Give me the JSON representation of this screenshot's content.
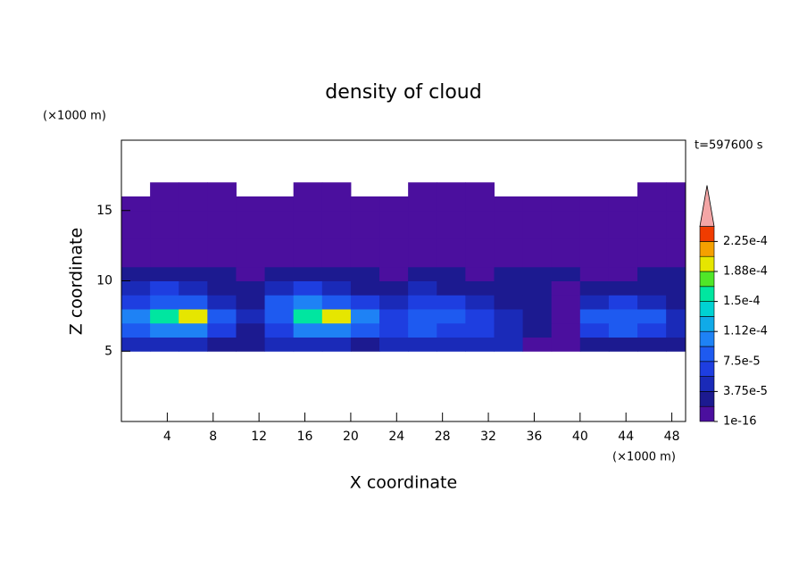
{
  "chart_data": {
    "type": "contour",
    "title": "density of cloud",
    "xlabel": "X coordinate",
    "ylabel": "Z coordinate",
    "xunit": "(×1000 m)",
    "yunit": "(×1000 m)",
    "time_label": "t=597600 s",
    "xlim": [
      0,
      49.2
    ],
    "ylim": [
      0,
      20
    ],
    "xticks": [
      4,
      8,
      12,
      16,
      20,
      24,
      28,
      32,
      36,
      40,
      44,
      48
    ],
    "yticks": [
      5,
      10,
      15
    ],
    "x": [
      1.25,
      3.75,
      6.25,
      8.75,
      11.25,
      13.75,
      16.25,
      18.75,
      21.25,
      23.75,
      26.25,
      28.75,
      31.25,
      33.75,
      36.25,
      38.75,
      41.25,
      43.75,
      46.25,
      48.75
    ],
    "z": [
      5.5,
      6.5,
      7.5,
      8.5,
      9.5,
      10.5,
      11.5,
      12.5,
      13.5,
      14.5,
      15.5,
      16.5
    ],
    "values": [
      [
        4.5e-05,
        4.5e-05,
        4.5e-05,
        2.5e-05,
        2.5e-05,
        4.5e-05,
        4.5e-05,
        4.5e-05,
        2.5e-05,
        4.5e-05,
        4.5e-05,
        4.5e-05,
        4.5e-05,
        4.5e-05,
        5e-06,
        5e-06,
        2.5e-05,
        2.5e-05,
        2.5e-05,
        2.5e-05
      ],
      [
        8e-05,
        0.0001,
        0.0001,
        6e-05,
        2.5e-05,
        6e-05,
        0.0001,
        0.0001,
        8e-05,
        6e-05,
        8e-05,
        6e-05,
        6e-05,
        4.5e-05,
        2.5e-05,
        5e-06,
        6e-05,
        8e-05,
        6e-05,
        4.5e-05
      ],
      [
        0.0001,
        0.00015,
        0.0002,
        8e-05,
        4.5e-05,
        8e-05,
        0.00015,
        0.0002,
        0.0001,
        6e-05,
        8e-05,
        8e-05,
        6e-05,
        4.5e-05,
        2.5e-05,
        5e-06,
        8e-05,
        8e-05,
        8e-05,
        4.5e-05
      ],
      [
        6e-05,
        8e-05,
        8e-05,
        4.5e-05,
        2.5e-05,
        8e-05,
        0.0001,
        8e-05,
        6e-05,
        4.5e-05,
        6e-05,
        6e-05,
        4.5e-05,
        2.5e-05,
        2.5e-05,
        5e-06,
        4.5e-05,
        6e-05,
        4.5e-05,
        2.5e-05
      ],
      [
        4.5e-05,
        6e-05,
        4.5e-05,
        2.5e-05,
        2.5e-05,
        4.5e-05,
        6e-05,
        4.5e-05,
        2.5e-05,
        2.5e-05,
        4.5e-05,
        2.5e-05,
        2.5e-05,
        2.5e-05,
        2.5e-05,
        5e-06,
        2.5e-05,
        2.5e-05,
        2.5e-05,
        2.5e-05
      ],
      [
        2.5e-05,
        2.5e-05,
        2.5e-05,
        2.5e-05,
        5e-06,
        2.5e-05,
        2.5e-05,
        2.5e-05,
        2.5e-05,
        5e-06,
        2.5e-05,
        2.5e-05,
        5e-06,
        2.5e-05,
        2.5e-05,
        2.5e-05,
        5e-06,
        5e-06,
        2.5e-05,
        2.5e-05
      ],
      [
        5e-06,
        5e-06,
        5e-06,
        5e-06,
        5e-06,
        5e-06,
        5e-06,
        5e-06,
        5e-06,
        5e-06,
        5e-06,
        5e-06,
        5e-06,
        5e-06,
        5e-06,
        5e-06,
        5e-06,
        5e-06,
        5e-06,
        5e-06
      ],
      [
        5e-06,
        5e-06,
        5e-06,
        5e-06,
        5e-06,
        5e-06,
        5e-06,
        5e-06,
        5e-06,
        5e-06,
        5e-06,
        5e-06,
        5e-06,
        5e-06,
        5e-06,
        5e-06,
        5e-06,
        5e-06,
        5e-06,
        5e-06
      ],
      [
        5e-06,
        5e-06,
        5e-06,
        5e-06,
        5e-06,
        5e-06,
        5e-06,
        5e-06,
        5e-06,
        5e-06,
        5e-06,
        5e-06,
        5e-06,
        5e-06,
        5e-06,
        5e-06,
        5e-06,
        5e-06,
        5e-06,
        5e-06
      ],
      [
        5e-06,
        5e-06,
        5e-06,
        5e-06,
        5e-06,
        5e-06,
        5e-06,
        5e-06,
        5e-06,
        5e-06,
        5e-06,
        5e-06,
        5e-06,
        5e-06,
        5e-06,
        5e-06,
        5e-06,
        5e-06,
        5e-06,
        5e-06
      ],
      [
        5e-06,
        5e-06,
        5e-06,
        5e-06,
        5e-06,
        5e-06,
        5e-06,
        5e-06,
        5e-06,
        5e-06,
        5e-06,
        5e-06,
        5e-06,
        5e-06,
        5e-06,
        5e-06,
        5e-06,
        5e-06,
        5e-06,
        5e-06
      ],
      [
        null,
        5e-06,
        5e-06,
        5e-06,
        null,
        null,
        5e-06,
        5e-06,
        null,
        null,
        5e-06,
        5e-06,
        5e-06,
        null,
        null,
        null,
        null,
        null,
        5e-06,
        5e-06
      ]
    ],
    "levels": [
      1e-16,
      1.875e-05,
      3.75e-05,
      5.625e-05,
      7.5e-05,
      9.375e-05,
      0.0001125,
      0.00013125,
      0.00015,
      0.00016875,
      0.0001875,
      0.00020625,
      0.000225,
      0.00024375
    ],
    "colors": [
      "#4b0f9e",
      "#1c1a90",
      "#1a2ab8",
      "#1e3ee0",
      "#1e5af0",
      "#1e82f5",
      "#10aae8",
      "#00d2d2",
      "#00e6a0",
      "#50e628",
      "#e6e600",
      "#f5a000",
      "#f03c00"
    ],
    "extend_color": "#f4a6a6",
    "colorbar_ticks": [
      1e-16,
      {
        "value": 3.75e-05,
        "label": "3.75e-5"
      },
      {
        "value": 7.5e-05,
        "label": "7.5e-5"
      },
      {
        "value": 0.0001125,
        "label": "1.12e-4"
      },
      {
        "value": 0.00015,
        "label": "1.5e-4"
      },
      {
        "value": 0.0001875,
        "label": "1.88e-4"
      },
      {
        "value": 0.000225,
        "label": "2.25e-4"
      }
    ]
  }
}
